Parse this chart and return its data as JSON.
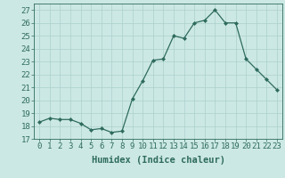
{
  "x": [
    0,
    1,
    2,
    3,
    4,
    5,
    6,
    7,
    8,
    9,
    10,
    11,
    12,
    13,
    14,
    15,
    16,
    17,
    18,
    19,
    20,
    21,
    22,
    23
  ],
  "y": [
    18.3,
    18.6,
    18.5,
    18.5,
    18.2,
    17.7,
    17.8,
    17.5,
    17.6,
    20.1,
    21.5,
    23.1,
    23.2,
    25.0,
    24.8,
    26.0,
    26.2,
    27.0,
    26.0,
    26.0,
    23.2,
    22.4,
    21.6,
    20.8
  ],
  "line_color": "#2e6b5e",
  "marker": "D",
  "marker_size": 2,
  "bg_color": "#cce8e4",
  "grid_color": "#aad0cc",
  "xlabel": "Humidex (Indice chaleur)",
  "xlim": [
    -0.5,
    23.5
  ],
  "ylim": [
    17,
    27.5
  ],
  "yticks": [
    17,
    18,
    19,
    20,
    21,
    22,
    23,
    24,
    25,
    26,
    27
  ],
  "xticks": [
    0,
    1,
    2,
    3,
    4,
    5,
    6,
    7,
    8,
    9,
    10,
    11,
    12,
    13,
    14,
    15,
    16,
    17,
    18,
    19,
    20,
    21,
    22,
    23
  ],
  "tick_label_fontsize": 6.5,
  "xlabel_fontsize": 7.5
}
